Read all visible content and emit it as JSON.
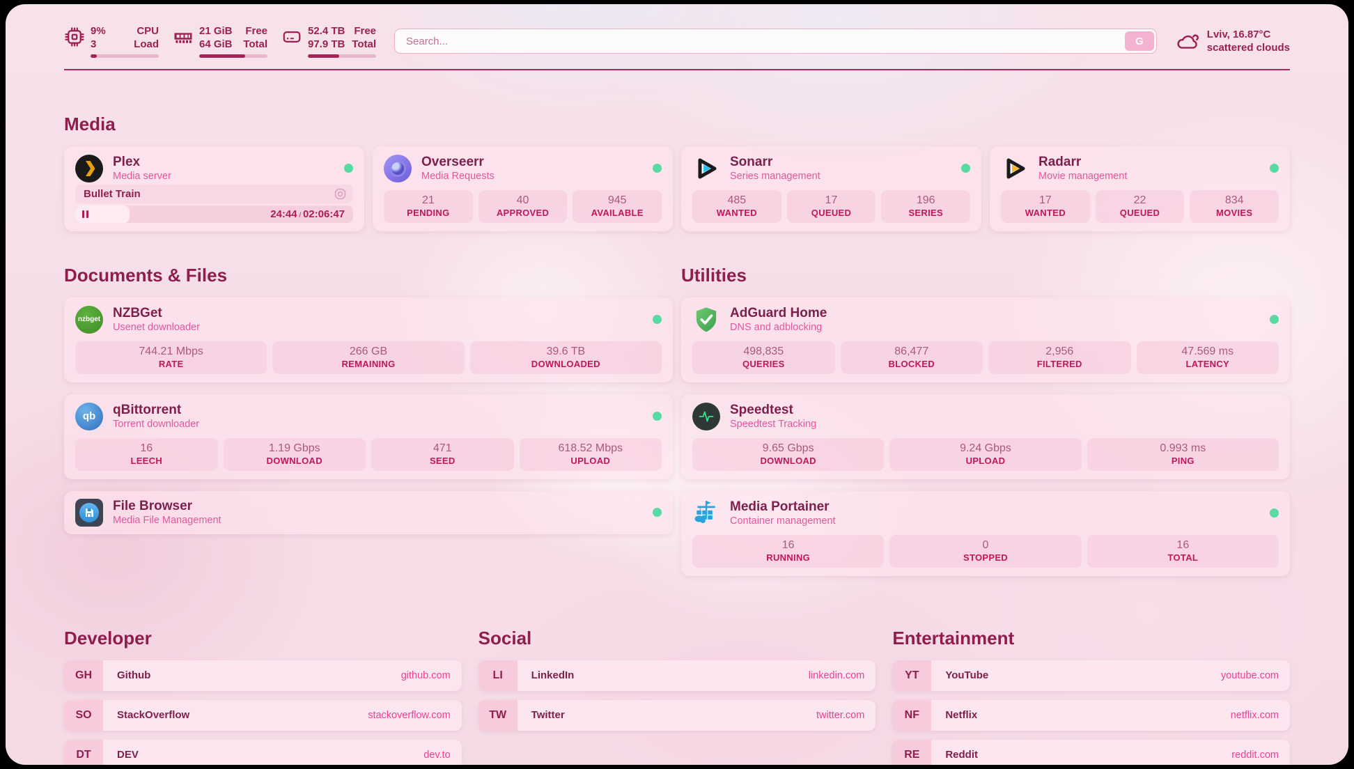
{
  "header": {
    "resources": [
      {
        "icon": "cpu-icon",
        "values": [
          "9%",
          "3"
        ],
        "labels": [
          "CPU",
          "Load"
        ],
        "progress": 9
      },
      {
        "icon": "ram-icon",
        "values": [
          "21 GiB",
          "64 GiB"
        ],
        "labels": [
          "Free",
          "Total"
        ],
        "progress": 67
      },
      {
        "icon": "disk-icon",
        "values": [
          "52.4 TB",
          "97.9 TB"
        ],
        "labels": [
          "Free",
          "Total"
        ],
        "progress": 46
      }
    ],
    "search": {
      "placeholder": "Search...",
      "button_label": "G"
    },
    "weather": {
      "location": "Lviv, 16.87°C",
      "condition": "scattered clouds"
    }
  },
  "sections": {
    "media": {
      "title": "Media",
      "plex": {
        "name": "Plex",
        "subtitle": "Media server",
        "now_playing": "Bullet Train",
        "elapsed": "24:44",
        "separator": "/",
        "duration": "02:06:47",
        "progress": 19.5
      },
      "overseerr": {
        "name": "Overseerr",
        "subtitle": "Media Requests",
        "stats": [
          {
            "value": "21",
            "label": "PENDING"
          },
          {
            "value": "40",
            "label": "APPROVED"
          },
          {
            "value": "945",
            "label": "AVAILABLE"
          }
        ]
      },
      "sonarr": {
        "name": "Sonarr",
        "subtitle": "Series management",
        "stats": [
          {
            "value": "485",
            "label": "WANTED"
          },
          {
            "value": "17",
            "label": "QUEUED"
          },
          {
            "value": "196",
            "label": "SERIES"
          }
        ]
      },
      "radarr": {
        "name": "Radarr",
        "subtitle": "Movie management",
        "stats": [
          {
            "value": "17",
            "label": "WANTED"
          },
          {
            "value": "22",
            "label": "QUEUED"
          },
          {
            "value": "834",
            "label": "MOVIES"
          }
        ]
      }
    },
    "documents": {
      "title": "Documents & Files",
      "nzbget": {
        "name": "NZBGet",
        "subtitle": "Usenet downloader",
        "logo_text": "nzbget",
        "stats": [
          {
            "value": "744.21 Mbps",
            "label": "RATE"
          },
          {
            "value": "266 GB",
            "label": "REMAINING"
          },
          {
            "value": "39.6 TB",
            "label": "DOWNLOADED"
          }
        ]
      },
      "qbittorrent": {
        "name": "qBittorrent",
        "subtitle": "Torrent downloader",
        "logo_text": "qb",
        "stats": [
          {
            "value": "16",
            "label": "LEECH"
          },
          {
            "value": "1.19 Gbps",
            "label": "DOWNLOAD"
          },
          {
            "value": "471",
            "label": "SEED"
          },
          {
            "value": "618.52 Mbps",
            "label": "UPLOAD"
          }
        ]
      },
      "filebrowser": {
        "name": "File Browser",
        "subtitle": "Media File Management"
      }
    },
    "utilities": {
      "title": "Utilities",
      "adguard": {
        "name": "AdGuard Home",
        "subtitle": "DNS and adblocking",
        "stats": [
          {
            "value": "498,835",
            "label": "QUERIES"
          },
          {
            "value": "86,477",
            "label": "BLOCKED"
          },
          {
            "value": "2,956",
            "label": "FILTERED"
          },
          {
            "value": "47.569 ms",
            "label": "LATENCY"
          }
        ]
      },
      "speedtest": {
        "name": "Speedtest",
        "subtitle": "Speedtest Tracking",
        "stats": [
          {
            "value": "9.65 Gbps",
            "label": "DOWNLOAD"
          },
          {
            "value": "9.24 Gbps",
            "label": "UPLOAD"
          },
          {
            "value": "0.993 ms",
            "label": "PING"
          }
        ]
      },
      "portainer": {
        "name": "Media Portainer",
        "subtitle": "Container management",
        "stats": [
          {
            "value": "16",
            "label": "RUNNING"
          },
          {
            "value": "0",
            "label": "STOPPED"
          },
          {
            "value": "16",
            "label": "TOTAL"
          }
        ]
      }
    },
    "developer": {
      "title": "Developer",
      "links": [
        {
          "abbr": "GH",
          "name": "Github",
          "url": "github.com"
        },
        {
          "abbr": "SO",
          "name": "StackOverflow",
          "url": "stackoverflow.com"
        },
        {
          "abbr": "DT",
          "name": "DEV",
          "url": "dev.to"
        }
      ]
    },
    "social": {
      "title": "Social",
      "links": [
        {
          "abbr": "LI",
          "name": "LinkedIn",
          "url": "linkedin.com"
        },
        {
          "abbr": "TW",
          "name": "Twitter",
          "url": "twitter.com"
        }
      ]
    },
    "entertainment": {
      "title": "Entertainment",
      "links": [
        {
          "abbr": "YT",
          "name": "YouTube",
          "url": "youtube.com"
        },
        {
          "abbr": "NF",
          "name": "Netflix",
          "url": "netflix.com"
        },
        {
          "abbr": "RE",
          "name": "Reddit",
          "url": "reddit.com"
        }
      ]
    }
  },
  "colors": {
    "accent": "#9c2052",
    "link": "#ee3f96",
    "status_online": "#57dba2"
  }
}
